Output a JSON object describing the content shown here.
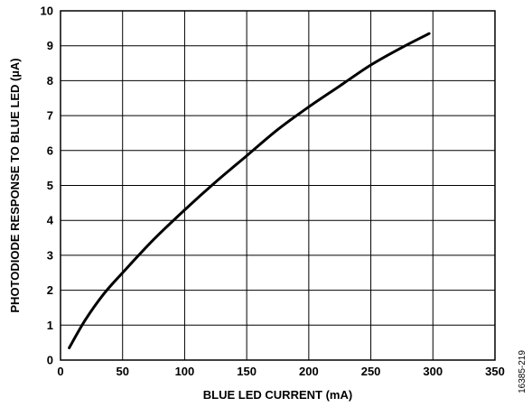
{
  "chart_data": {
    "type": "line",
    "xlabel": "BLUE LED CURRENT (mA)",
    "ylabel": "PHOTODIODE RESPONSE TO BLUE LED (µA)",
    "xlim": [
      0,
      350
    ],
    "ylim": [
      0,
      10
    ],
    "x_ticks": [
      0,
      50,
      100,
      150,
      200,
      250,
      300,
      350
    ],
    "y_ticks": [
      0,
      1,
      2,
      3,
      4,
      5,
      6,
      7,
      8,
      9,
      10
    ],
    "grid": true,
    "series": [
      {
        "x": [
          7,
          20,
          35,
          50,
          75,
          100,
          125,
          150,
          175,
          200,
          225,
          250,
          275,
          297
        ],
        "y": [
          0.35,
          1.15,
          1.9,
          2.5,
          3.45,
          4.3,
          5.1,
          5.85,
          6.6,
          7.25,
          7.85,
          8.45,
          8.95,
          9.35
        ]
      }
    ],
    "line_color": "#000000",
    "figure_id": "16385-219"
  }
}
